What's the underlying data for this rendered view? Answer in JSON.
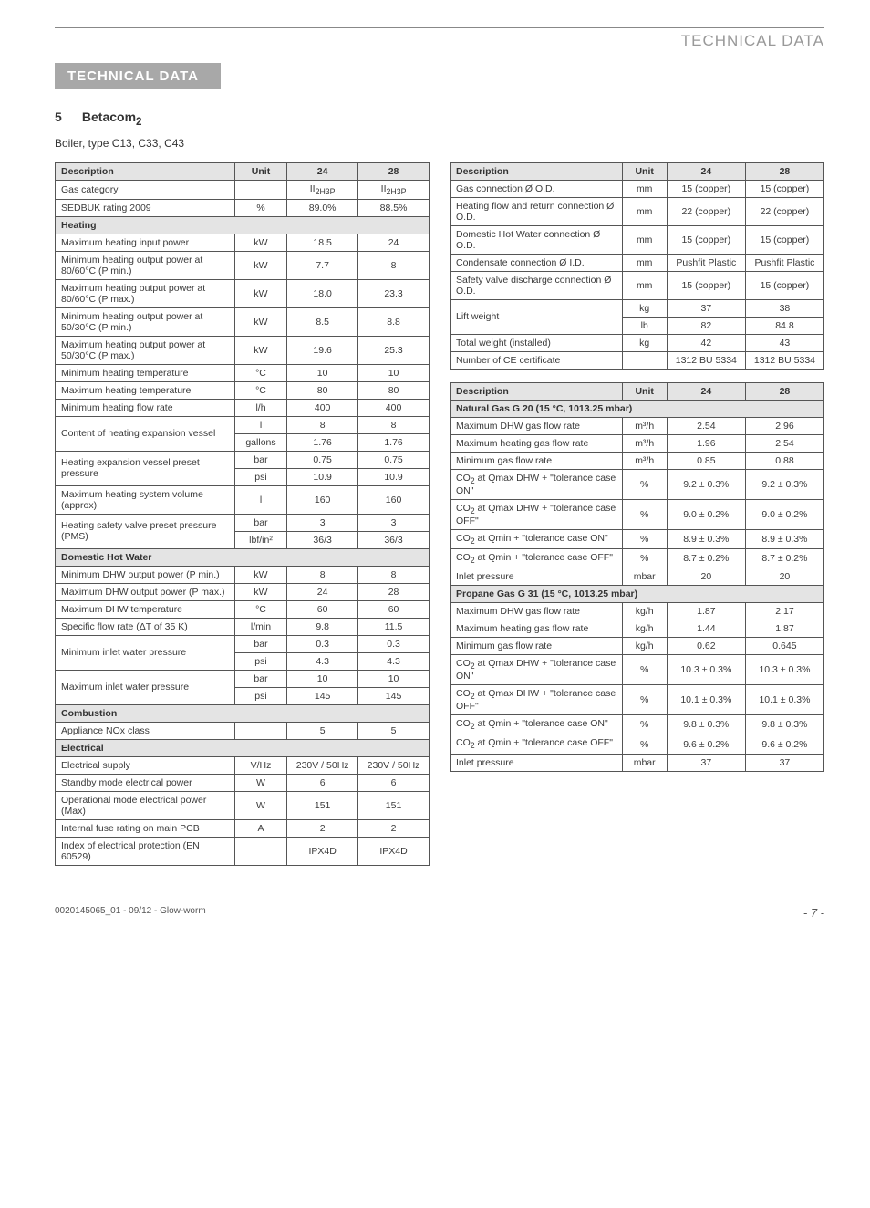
{
  "header": {
    "title": "TECHNICAL DATA"
  },
  "sectionBar": "TECHNICAL DATA",
  "subhead": {
    "num": "5",
    "title": "Betacom",
    "sub": "2"
  },
  "boilerType": "Boiler, type C13, C33, C43",
  "colors": {
    "bar": "#a8a8a8",
    "thBg": "#e4e4e4",
    "text": "#3a3a3a",
    "border": "#555"
  },
  "leftTable": {
    "headers": [
      "Description",
      "Unit",
      "24",
      "28"
    ],
    "rows": [
      {
        "d": "Gas category",
        "u": "",
        "v24": "II<sub>2H3P</sub>",
        "v28": "II<sub>2H3P</sub>",
        "html": true
      },
      {
        "d": "SEDBUK rating 2009",
        "u": "%",
        "v24": "89.0%",
        "v28": "88.5%"
      },
      {
        "section": "Heating"
      },
      {
        "d": "Maximum heating input power",
        "u": "kW",
        "v24": "18.5",
        "v28": "24"
      },
      {
        "d": "Minimum heating output power at 80/60°C (P min.)",
        "u": "kW",
        "v24": "7.7",
        "v28": "8"
      },
      {
        "d": "Maximum heating output power at 80/60°C (P max.)",
        "u": "kW",
        "v24": "18.0",
        "v28": "23.3"
      },
      {
        "d": "Minimum heating output power at 50/30°C (P min.)",
        "u": "kW",
        "v24": "8.5",
        "v28": "8.8"
      },
      {
        "d": "Maximum heating output power at 50/30°C (P max.)",
        "u": "kW",
        "v24": "19.6",
        "v28": "25.3"
      },
      {
        "d": "Minimum heating temperature",
        "u": "°C",
        "v24": "10",
        "v28": "10"
      },
      {
        "d": "Maximum heating temperature",
        "u": "°C",
        "v24": "80",
        "v28": "80"
      },
      {
        "d": "Minimum heating flow rate",
        "u": "l/h",
        "v24": "400",
        "v28": "400"
      },
      {
        "d": "Content of heating expansion vessel",
        "rowspan": 2,
        "u": "l",
        "v24": "8",
        "v28": "8"
      },
      {
        "contU": "gallons",
        "v24": "1.76",
        "v28": "1.76"
      },
      {
        "d": "Heating expansion vessel preset pressure",
        "rowspan": 2,
        "u": "bar",
        "v24": "0.75",
        "v28": "0.75"
      },
      {
        "contU": "psi",
        "v24": "10.9",
        "v28": "10.9"
      },
      {
        "d": "Maximum heating system volume (approx)",
        "u": "l",
        "v24": "160",
        "v28": "160"
      },
      {
        "d": "Heating safety valve preset pressure (PMS)",
        "rowspan": 2,
        "u": "bar",
        "v24": "3",
        "v28": "3"
      },
      {
        "contU": "lbf/in²",
        "v24": "36/3",
        "v28": "36/3"
      },
      {
        "section": "Domestic Hot Water"
      },
      {
        "d": "Minimum DHW output power (P min.)",
        "u": "kW",
        "v24": "8",
        "v28": "8"
      },
      {
        "d": "Maximum DHW output power (P max.)",
        "u": "kW",
        "v24": "24",
        "v28": "28"
      },
      {
        "d": "Maximum DHW temperature",
        "u": "°C",
        "v24": "60",
        "v28": "60"
      },
      {
        "d": "Specific flow rate (ΔT of 35 K)",
        "u": "l/min",
        "v24": "9.8",
        "v28": "11.5"
      },
      {
        "d": "Minimum inlet water pressure",
        "rowspan": 2,
        "u": "bar",
        "v24": "0.3",
        "v28": "0.3"
      },
      {
        "contU": "psi",
        "v24": "4.3",
        "v28": "4.3"
      },
      {
        "d": "Maximum inlet water pressure",
        "rowspan": 2,
        "u": "bar",
        "v24": "10",
        "v28": "10"
      },
      {
        "contU": "psi",
        "v24": "145",
        "v28": "145"
      },
      {
        "section": "Combustion"
      },
      {
        "d": "Appliance NOx class",
        "u": "",
        "v24": "5",
        "v28": "5"
      },
      {
        "section": "Electrical"
      },
      {
        "d": "Electrical supply",
        "u": "V/Hz",
        "v24": "230V / 50Hz",
        "v28": "230V / 50Hz"
      },
      {
        "d": "Standby mode electrical power",
        "u": "W",
        "v24": "6",
        "v28": "6"
      },
      {
        "d": "Operational mode electrical power (Max)",
        "u": "W",
        "v24": "151",
        "v28": "151"
      },
      {
        "d": "Internal fuse rating on main PCB",
        "u": "A",
        "v24": "2",
        "v28": "2"
      },
      {
        "d": "Index of electrical protection (EN 60529)",
        "u": "",
        "v24": "IPX4D",
        "v28": "IPX4D"
      }
    ]
  },
  "rightTop": {
    "headers": [
      "Description",
      "Unit",
      "24",
      "28"
    ],
    "rows": [
      {
        "d": "Gas connection Ø O.D.",
        "u": "mm",
        "v24": "15 (copper)",
        "v28": "15 (copper)"
      },
      {
        "d": "Heating flow and return connection Ø O.D.",
        "u": "mm",
        "v24": "22 (copper)",
        "v28": "22 (copper)"
      },
      {
        "d": "Domestic Hot Water connection Ø O.D.",
        "u": "mm",
        "v24": "15 (copper)",
        "v28": "15 (copper)"
      },
      {
        "d": "Condensate connection Ø I.D.",
        "u": "mm",
        "v24": "Pushfit Plastic",
        "v28": "Pushfit Plastic"
      },
      {
        "d": "Safety valve discharge connection Ø O.D.",
        "u": "mm",
        "v24": "15 (copper)",
        "v28": "15 (copper)"
      },
      {
        "d": "Lift weight",
        "rowspan": 2,
        "u": "kg",
        "v24": "37",
        "v28": "38"
      },
      {
        "contU": "lb",
        "v24": "82",
        "v28": "84.8"
      },
      {
        "d": "Total weight (installed)",
        "u": "kg",
        "v24": "42",
        "v28": "43"
      },
      {
        "d": "Number of CE certificate",
        "u": "",
        "v24": "1312 BU 5334",
        "v28": "1312 BU 5334"
      }
    ]
  },
  "rightBottom": {
    "headers": [
      "Description",
      "Unit",
      "24",
      "28"
    ],
    "rows": [
      {
        "section": "Natural Gas G 20 (15 °C, 1013.25 mbar)"
      },
      {
        "d": "Maximum DHW gas flow rate",
        "u": "m³/h",
        "v24": "2.54",
        "v28": "2.96"
      },
      {
        "d": "Maximum heating gas flow rate",
        "u": "m³/h",
        "v24": "1.96",
        "v28": "2.54"
      },
      {
        "d": "Minimum gas flow rate",
        "u": "m³/h",
        "v24": "0.85",
        "v28": "0.88"
      },
      {
        "d": "CO<sub>2</sub> at Qmax DHW + \"tolerance case ON\"",
        "u": "%",
        "v24": "9.2 ± 0.3%",
        "v28": "9.2 ± 0.3%",
        "html": true
      },
      {
        "d": "CO<sub>2</sub> at Qmax DHW + \"tolerance case OFF\"",
        "u": "%",
        "v24": "9.0 ± 0.2%",
        "v28": "9.0 ± 0.2%",
        "html": true
      },
      {
        "d": "CO<sub>2</sub> at Qmin + \"tolerance case ON\"",
        "u": "%",
        "v24": "8.9 ± 0.3%",
        "v28": "8.9 ± 0.3%",
        "html": true
      },
      {
        "d": "CO<sub>2</sub> at Qmin + \"tolerance case OFF\"",
        "u": "%",
        "v24": "8.7 ± 0.2%",
        "v28": "8.7 ± 0.2%",
        "html": true
      },
      {
        "d": "Inlet pressure",
        "u": "mbar",
        "v24": "20",
        "v28": "20"
      },
      {
        "section": "Propane Gas G 31 (15 °C, 1013.25 mbar)"
      },
      {
        "d": "Maximum DHW gas flow rate",
        "u": "kg/h",
        "v24": "1.87",
        "v28": "2.17"
      },
      {
        "d": "Maximum heating gas flow rate",
        "u": "kg/h",
        "v24": "1.44",
        "v28": "1.87"
      },
      {
        "d": "Minimum gas flow rate",
        "u": "kg/h",
        "v24": "0.62",
        "v28": "0.645"
      },
      {
        "d": "CO<sub>2</sub> at Qmax DHW + \"tolerance case ON\"",
        "u": "%",
        "v24": "10.3 ± 0.3%",
        "v28": "10.3 ± 0.3%",
        "html": true
      },
      {
        "d": "CO<sub>2</sub> at Qmax DHW + \"tolerance case OFF\"",
        "u": "%",
        "v24": "10.1 ± 0.3%",
        "v28": "10.1 ± 0.3%",
        "html": true
      },
      {
        "d": "CO<sub>2</sub> at Qmin + \"tolerance case ON\"",
        "u": "%",
        "v24": "9.8 ± 0.3%",
        "v28": "9.8 ± 0.3%",
        "html": true
      },
      {
        "d": "CO<sub>2</sub> at Qmin + \"tolerance case OFF\"",
        "u": "%",
        "v24": "9.6 ± 0.2%",
        "v28": "9.6 ± 0.2%",
        "html": true
      },
      {
        "d": "Inlet pressure",
        "u": "mbar",
        "v24": "37",
        "v28": "37"
      }
    ]
  },
  "footer": {
    "left": "0020145065_01 - 09/12 - Glow-worm",
    "right": "- 7 -"
  }
}
